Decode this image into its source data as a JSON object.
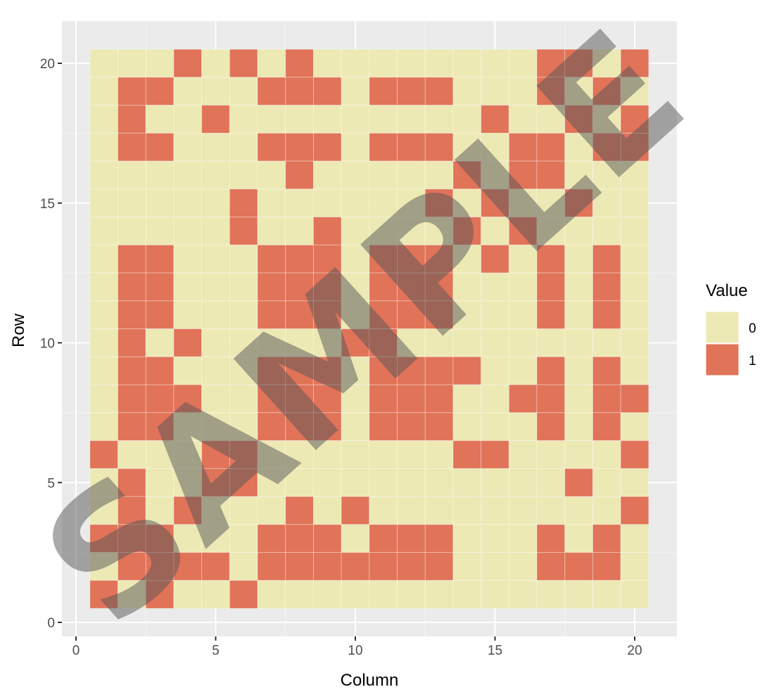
{
  "chart_data": {
    "type": "heatmap",
    "title": "",
    "xlabel": "Column",
    "ylabel": "Row",
    "xlim": [
      0,
      21
    ],
    "ylim": [
      0,
      21
    ],
    "xticks": [
      0,
      5,
      10,
      15,
      20
    ],
    "yticks": [
      0,
      5,
      10,
      15,
      20
    ],
    "legend": {
      "title": "Value",
      "placement": "right",
      "entries": [
        {
          "label": "0",
          "value": 0,
          "color": "#EDE9B5"
        },
        {
          "label": "1",
          "value": 1,
          "color": "#E07358"
        }
      ]
    },
    "grid": true,
    "panel_background": "#EBEBEB",
    "rows": [
      {
        "row": 20,
        "values": [
          0,
          0,
          0,
          1,
          0,
          1,
          0,
          1,
          0,
          0,
          0,
          0,
          0,
          0,
          0,
          0,
          1,
          1,
          0,
          1
        ]
      },
      {
        "row": 19,
        "values": [
          0,
          1,
          1,
          0,
          0,
          0,
          1,
          1,
          1,
          0,
          1,
          1,
          1,
          0,
          0,
          0,
          1,
          0,
          1,
          0
        ]
      },
      {
        "row": 18,
        "values": [
          0,
          1,
          0,
          0,
          1,
          0,
          0,
          0,
          0,
          0,
          0,
          0,
          0,
          0,
          1,
          0,
          0,
          1,
          0,
          1
        ]
      },
      {
        "row": 17,
        "values": [
          0,
          1,
          1,
          0,
          0,
          0,
          1,
          1,
          1,
          0,
          1,
          1,
          1,
          0,
          0,
          1,
          1,
          0,
          1,
          1
        ]
      },
      {
        "row": 16,
        "values": [
          0,
          0,
          0,
          0,
          0,
          0,
          0,
          1,
          0,
          0,
          0,
          0,
          0,
          1,
          0,
          1,
          1,
          0,
          0,
          0
        ]
      },
      {
        "row": 15,
        "values": [
          0,
          0,
          0,
          0,
          0,
          1,
          0,
          0,
          0,
          0,
          0,
          0,
          1,
          0,
          1,
          0,
          0,
          1,
          0,
          0
        ]
      },
      {
        "row": 14,
        "values": [
          0,
          0,
          0,
          0,
          0,
          1,
          0,
          0,
          1,
          0,
          0,
          0,
          0,
          1,
          0,
          1,
          0,
          0,
          0,
          0
        ]
      },
      {
        "row": 13,
        "values": [
          0,
          1,
          1,
          0,
          0,
          0,
          1,
          1,
          1,
          0,
          1,
          1,
          1,
          0,
          1,
          0,
          1,
          0,
          1,
          0
        ]
      },
      {
        "row": 12,
        "values": [
          0,
          1,
          1,
          0,
          0,
          0,
          1,
          1,
          1,
          0,
          1,
          1,
          1,
          0,
          0,
          0,
          1,
          0,
          1,
          0
        ]
      },
      {
        "row": 11,
        "values": [
          0,
          1,
          1,
          0,
          0,
          0,
          1,
          1,
          1,
          0,
          1,
          1,
          1,
          0,
          0,
          0,
          1,
          0,
          1,
          0
        ]
      },
      {
        "row": 10,
        "values": [
          0,
          1,
          0,
          1,
          0,
          0,
          0,
          0,
          0,
          1,
          1,
          0,
          0,
          0,
          0,
          0,
          0,
          0,
          0,
          0
        ]
      },
      {
        "row": 9,
        "values": [
          0,
          1,
          1,
          0,
          0,
          0,
          1,
          1,
          1,
          0,
          1,
          1,
          1,
          1,
          0,
          0,
          1,
          0,
          1,
          0
        ]
      },
      {
        "row": 8,
        "values": [
          0,
          1,
          1,
          1,
          0,
          0,
          1,
          1,
          1,
          0,
          1,
          1,
          1,
          0,
          0,
          1,
          1,
          0,
          1,
          1
        ]
      },
      {
        "row": 7,
        "values": [
          0,
          1,
          1,
          0,
          0,
          0,
          1,
          1,
          1,
          0,
          1,
          1,
          1,
          0,
          0,
          0,
          1,
          0,
          1,
          0
        ]
      },
      {
        "row": 6,
        "values": [
          1,
          0,
          0,
          0,
          1,
          1,
          0,
          0,
          0,
          0,
          0,
          0,
          0,
          1,
          1,
          0,
          0,
          0,
          0,
          1
        ]
      },
      {
        "row": 5,
        "values": [
          0,
          1,
          0,
          0,
          1,
          1,
          0,
          0,
          0,
          0,
          0,
          0,
          0,
          0,
          0,
          0,
          0,
          1,
          0,
          0
        ]
      },
      {
        "row": 4,
        "values": [
          0,
          1,
          0,
          1,
          0,
          0,
          0,
          1,
          0,
          1,
          0,
          0,
          0,
          0,
          0,
          0,
          0,
          0,
          0,
          1
        ]
      },
      {
        "row": 3,
        "values": [
          1,
          1,
          1,
          0,
          0,
          0,
          1,
          1,
          1,
          0,
          1,
          1,
          1,
          0,
          0,
          0,
          1,
          0,
          1,
          0
        ]
      },
      {
        "row": 2,
        "values": [
          0,
          1,
          1,
          1,
          1,
          0,
          1,
          1,
          1,
          1,
          1,
          1,
          1,
          0,
          0,
          0,
          1,
          1,
          1,
          0
        ]
      },
      {
        "row": 1,
        "values": [
          1,
          0,
          1,
          0,
          0,
          1,
          0,
          0,
          0,
          0,
          0,
          0,
          0,
          0,
          0,
          0,
          0,
          0,
          0,
          0
        ]
      }
    ],
    "watermark": "SAMPLE"
  }
}
